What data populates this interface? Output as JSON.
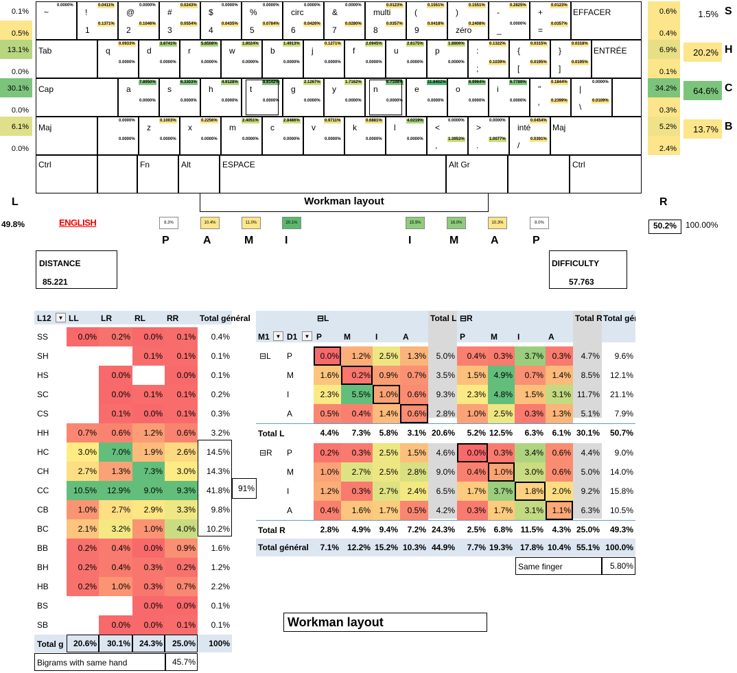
{
  "keyboard_title": "Workman layout",
  "language": "ENGLISH",
  "hands": {
    "left_label": "L",
    "left_value": "49.8%",
    "right_label": "R",
    "right_value": "50.2%",
    "total": "100.00%"
  },
  "left_side_pct": [
    "0.1%",
    "0.5%",
    "13.1%",
    "0.0%",
    "30.1%",
    "0.0%",
    "6.1%",
    "0.0%"
  ],
  "right_side_pct": [
    "0.6%",
    "0.4%",
    "6.9%",
    "0.1%",
    "34.2%",
    "0.3%",
    "5.2%",
    "2.4%"
  ],
  "row_totals": [
    {
      "value": "1.5%",
      "letter": "S"
    },
    {
      "value": "20.2%",
      "letter": "H"
    },
    {
      "value": "64.6%",
      "letter": "C"
    },
    {
      "value": "13.7%",
      "letter": "B"
    }
  ],
  "keys_row0": [
    {
      "top": "~",
      "bottom": "",
      "pt": "0.0000%",
      "pb": ""
    },
    {
      "top": "!",
      "bottom": "1",
      "pt": "0.0411%",
      "pb": "0.1371%"
    },
    {
      "top": "@",
      "bottom": "2",
      "pt": "0.0000%",
      "pb": "0.1046%"
    },
    {
      "top": "#",
      "bottom": "3",
      "pt": "0.0243%",
      "pb": "0.0554%"
    },
    {
      "top": "$",
      "bottom": "4",
      "pt": "0.0000%",
      "pb": "0.0435%"
    },
    {
      "top": "%",
      "bottom": "5",
      "pt": "0.0000%",
      "pb": "0.0784%"
    },
    {
      "top": "circ",
      "bottom": "6",
      "pt": "0.0000%",
      "pb": "0.0426%"
    },
    {
      "top": "&",
      "bottom": "7",
      "pt": "0.0000%",
      "pb": "0.0280%"
    },
    {
      "top": "multi",
      "bottom": "8",
      "pt": "0.0123%",
      "pb": "0.0357%"
    },
    {
      "top": "(",
      "bottom": "9",
      "pt": "0.1551%",
      "pb": "0.0418%"
    },
    {
      "top": ")",
      "bottom": "zéro",
      "pt": "0.1551%",
      "pb": "0.2408%"
    },
    {
      "top": "-",
      "bottom": "_",
      "pt": "0.2825%",
      "pb": "0.0000%"
    },
    {
      "top": "+",
      "bottom": "=",
      "pt": "0.0123%",
      "pb": "0.0357%"
    }
  ],
  "key_backspace": "EFFACER",
  "key_tab": "Tab",
  "keys_row1": [
    {
      "top": "q",
      "bottom": "",
      "pt": "0.0933%",
      "pb": "0.0000%"
    },
    {
      "top": "d",
      "bottom": "",
      "pt": "3.8741%",
      "pb": "0.0000%"
    },
    {
      "top": "r",
      "bottom": "",
      "pt": "5.8508%",
      "pb": "0.0000%"
    },
    {
      "top": "w",
      "bottom": "",
      "pt": "1.8024%",
      "pb": "0.0000%"
    },
    {
      "top": "b",
      "bottom": "",
      "pt": "1.4913%",
      "pb": "0.0000%"
    },
    {
      "top": "j",
      "bottom": "",
      "pt": "0.1271%",
      "pb": "0.0000%"
    },
    {
      "top": "f",
      "bottom": "",
      "pt": "2.0945%",
      "pb": "0.0000%"
    },
    {
      "top": "u",
      "bottom": "",
      "pt": "2.6175%",
      "pb": "0.0000%"
    },
    {
      "top": "p",
      "bottom": "",
      "pt": "1.8806%",
      "pb": "0.0000%"
    },
    {
      "top": ":",
      "bottom": ";",
      "pt": "0.1322%",
      "pb": "0.1039%"
    },
    {
      "top": "{",
      "bottom": "[",
      "pt": "0.0315%",
      "pb": "0.0195%"
    },
    {
      "top": "}",
      "bottom": "]",
      "pt": "0.0318%",
      "pb": "0.0195%"
    }
  ],
  "key_enter": "ENTRÉE",
  "key_caps": "Cap",
  "keys_row2": [
    {
      "top": "a",
      "bottom": "",
      "pt": "7.8950%",
      "pb": "0.0000%"
    },
    {
      "top": "s",
      "bottom": "",
      "pt": "6.3303%",
      "pb": "0.0000%"
    },
    {
      "top": "h",
      "bottom": "",
      "pt": "4.9128%",
      "pb": "0.0000%"
    },
    {
      "top": "t",
      "bottom": "",
      "pt": "8.8142%",
      "pb": "0.0000%"
    },
    {
      "top": "g",
      "bottom": "",
      "pt": "2.1267%",
      "pb": "0.0000%"
    },
    {
      "top": "y",
      "bottom": "",
      "pt": "1.7162%",
      "pb": "0.0000%"
    },
    {
      "top": "n",
      "bottom": "",
      "pt": "6.7108%",
      "pb": "0.0000%"
    },
    {
      "top": "e",
      "bottom": "",
      "pt": "11.8402%",
      "pb": "0.0000%"
    },
    {
      "top": "o",
      "bottom": "",
      "pt": "6.9964%",
      "pb": "0.0000%"
    },
    {
      "top": "i",
      "bottom": "",
      "pt": "6.7789%",
      "pb": "0.0000%"
    },
    {
      "top": "\"",
      "bottom": "'",
      "pt": "0.1844%",
      "pb": "0.2399%"
    },
    {
      "top": "|",
      "bottom": "\\",
      "pt": "0.0000%",
      "pb": "0.0109%"
    }
  ],
  "key_shift_l": "Maj",
  "keys_row3": [
    {
      "top": "",
      "bottom": "",
      "pt": "0.0000%",
      "pb": "0.0000%"
    },
    {
      "top": "z",
      "bottom": "",
      "pt": "0.1003%",
      "pb": "0.0000%"
    },
    {
      "top": "x",
      "bottom": "",
      "pt": "0.2256%",
      "pb": "0.0000%"
    },
    {
      "top": "m",
      "bottom": "",
      "pt": "2.4051%",
      "pb": "0.0000%"
    },
    {
      "top": "c",
      "bottom": "",
      "pt": "2.8486%",
      "pb": "0.0000%"
    },
    {
      "top": "v",
      "bottom": "",
      "pt": "0.9711%",
      "pb": "0.0000%"
    },
    {
      "top": "k",
      "bottom": "",
      "pt": "0.6881%",
      "pb": "0.0000%"
    },
    {
      "top": "l",
      "bottom": "",
      "pt": "4.0219%",
      "pb": "0.0000%"
    },
    {
      "top": "<",
      "bottom": ",",
      "pt": "0.0000%",
      "pb": "1.3953%"
    },
    {
      "top": ">",
      "bottom": ".",
      "pt": "0.0000%",
      "pb": "1.0077%"
    },
    {
      "top": "inté",
      "bottom": "/",
      "pt": "0.0454%",
      "pb": "0.0391%"
    }
  ],
  "key_shift_r": "Maj",
  "bottom_row": {
    "ctrl_l": "Ctrl",
    "fn": "Fn",
    "alt": "Alt",
    "space": "ESPACE",
    "altgr": "Alt Gr",
    "ctrl_r": "Ctrl"
  },
  "fingers": [
    {
      "pct": "8.3%",
      "letter": "P"
    },
    {
      "pct": "10.4%",
      "letter": "A"
    },
    {
      "pct": "11.0%",
      "letter": "M"
    },
    {
      "pct": "20.1%",
      "letter": "I"
    },
    {
      "pct": "15.9%",
      "letter": "I"
    },
    {
      "pct": "16.0%",
      "letter": "M"
    },
    {
      "pct": "10.3%",
      "letter": "A"
    },
    {
      "pct": "8.0%",
      "letter": "P"
    }
  ],
  "distance": {
    "label": "DISTANCE",
    "value": "85.221"
  },
  "difficulty": {
    "label": "DIFFICULTY",
    "value": "57.763"
  },
  "pivot1": {
    "filter_label": "L12",
    "columns": [
      "LL",
      "LR",
      "RL",
      "RR",
      "Total général"
    ],
    "rows": [
      {
        "label": "SS",
        "cells": [
          "0.0%",
          "0.2%",
          "0.0%",
          "0.1%"
        ],
        "total": "0.4%"
      },
      {
        "label": "SH",
        "cells": [
          "",
          "",
          "0.1%",
          "0.1%"
        ],
        "total": "0.1%"
      },
      {
        "label": "HS",
        "cells": [
          "",
          "0.0%",
          "",
          "0.0%"
        ],
        "total": "0.1%"
      },
      {
        "label": "SC",
        "cells": [
          "",
          "0.0%",
          "0.1%",
          "0.1%"
        ],
        "total": "0.2%"
      },
      {
        "label": "CS",
        "cells": [
          "",
          "0.1%",
          "0.0%",
          "0.1%"
        ],
        "total": "0.3%"
      },
      {
        "label": "HH",
        "cells": [
          "0.7%",
          "0.6%",
          "1.2%",
          "0.6%"
        ],
        "total": "3.2%"
      },
      {
        "label": "HC",
        "cells": [
          "3.0%",
          "7.0%",
          "1.9%",
          "2.6%"
        ],
        "total": "14.5%"
      },
      {
        "label": "CH",
        "cells": [
          "2.7%",
          "1.3%",
          "7.3%",
          "3.0%"
        ],
        "total": "14.3%"
      },
      {
        "label": "CC",
        "cells": [
          "10.5%",
          "12.9%",
          "9.0%",
          "9.3%"
        ],
        "total": "41.8%"
      },
      {
        "label": "CB",
        "cells": [
          "1.0%",
          "2.7%",
          "2.9%",
          "3.3%"
        ],
        "total": "9.8%"
      },
      {
        "label": "BC",
        "cells": [
          "2.1%",
          "3.2%",
          "1.0%",
          "4.0%"
        ],
        "total": "10.2%"
      },
      {
        "label": "BB",
        "cells": [
          "0.2%",
          "0.4%",
          "0.0%",
          "0.9%"
        ],
        "total": "1.6%"
      },
      {
        "label": "BH",
        "cells": [
          "0.2%",
          "0.4%",
          "0.3%",
          "0.2%"
        ],
        "total": "1.2%"
      },
      {
        "label": "HB",
        "cells": [
          "0.2%",
          "1.0%",
          "0.3%",
          "0.7%"
        ],
        "total": "2.2%"
      },
      {
        "label": "BS",
        "cells": [
          "",
          "",
          "0.0%",
          "0.0%"
        ],
        "total": "0.1%"
      },
      {
        "label": "SB",
        "cells": [
          "",
          "0.0%",
          "0.0%",
          "0.1%"
        ],
        "total": "0.1%"
      }
    ],
    "cc_group_total": "91%",
    "total_row": {
      "label": "Total g",
      "cells": [
        "20.6%",
        "30.1%",
        "24.3%",
        "25.0%"
      ],
      "total": "100%"
    },
    "same_hand": {
      "label": "Bigrams with same hand",
      "value": "45.7%"
    }
  },
  "pivot2": {
    "col_group_l": "L",
    "col_group_r": "R",
    "header_total_l": "Total L",
    "header_total_r": "Total R",
    "header_total_g": "Total général",
    "row_field_1": "M1",
    "row_field_2": "D1",
    "sub_cols": [
      "P",
      "M",
      "I",
      "A"
    ],
    "groups": [
      {
        "hand": "L",
        "rows": [
          {
            "finger": "P",
            "l": [
              "0.0%",
              "1.2%",
              "2.5%",
              "1.3%"
            ],
            "tl": "5.0%",
            "r": [
              "0.4%",
              "0.3%",
              "3.7%",
              "0.3%"
            ],
            "tr": "4.7%",
            "tg": "9.6%"
          },
          {
            "finger": "M",
            "l": [
              "1.6%",
              "0.2%",
              "0.9%",
              "0.7%"
            ],
            "tl": "3.5%",
            "r": [
              "1.5%",
              "4.9%",
              "0.7%",
              "1.4%"
            ],
            "tr": "8.5%",
            "tg": "12.1%"
          },
          {
            "finger": "I",
            "l": [
              "2.3%",
              "5.5%",
              "1.0%",
              "0.6%"
            ],
            "tl": "9.3%",
            "r": [
              "2.3%",
              "4.8%",
              "1.5%",
              "3.1%"
            ],
            "tr": "11.7%",
            "tg": "21.1%"
          },
          {
            "finger": "A",
            "l": [
              "0.5%",
              "0.4%",
              "1.4%",
              "0.6%"
            ],
            "tl": "2.8%",
            "r": [
              "1.0%",
              "2.5%",
              "0.3%",
              "1.3%"
            ],
            "tr": "5.1%",
            "tg": "7.9%"
          }
        ],
        "total": {
          "label": "Total L",
          "l": [
            "4.4%",
            "7.3%",
            "5.8%",
            "3.1%"
          ],
          "tl": "20.6%",
          "r": [
            "5.2%",
            "12.5%",
            "6.3%",
            "6.1%"
          ],
          "tr": "30.1%",
          "tg": "50.7%"
        }
      },
      {
        "hand": "R",
        "rows": [
          {
            "finger": "P",
            "l": [
              "0.2%",
              "0.3%",
              "2.5%",
              "1.5%"
            ],
            "tl": "4.6%",
            "r": [
              "0.0%",
              "0.3%",
              "3.4%",
              "0.6%"
            ],
            "tr": "4.4%",
            "tg": "9.0%"
          },
          {
            "finger": "M",
            "l": [
              "1.0%",
              "2.7%",
              "2.5%",
              "2.8%"
            ],
            "tl": "9.0%",
            "r": [
              "0.4%",
              "1.0%",
              "3.0%",
              "0.6%"
            ],
            "tr": "5.0%",
            "tg": "14.0%"
          },
          {
            "finger": "I",
            "l": [
              "1.2%",
              "0.3%",
              "2.7%",
              "2.4%"
            ],
            "tl": "6.5%",
            "r": [
              "1.7%",
              "3.7%",
              "1.8%",
              "2.0%"
            ],
            "tr": "9.2%",
            "tg": "15.8%"
          },
          {
            "finger": "A",
            "l": [
              "0.4%",
              "1.6%",
              "1.7%",
              "0.5%"
            ],
            "tl": "4.2%",
            "r": [
              "0.3%",
              "1.7%",
              "3.1%",
              "1.1%"
            ],
            "tr": "6.3%",
            "tg": "10.5%"
          }
        ],
        "total": {
          "label": "Total R",
          "l": [
            "2.8%",
            "4.9%",
            "9.4%",
            "7.2%"
          ],
          "tl": "24.3%",
          "r": [
            "2.5%",
            "6.8%",
            "11.5%",
            "4.3%"
          ],
          "tr": "25.0%",
          "tg": "49.3%"
        }
      }
    ],
    "grand_total": {
      "label": "Total général",
      "l": [
        "7.1%",
        "12.2%",
        "15.2%",
        "10.3%"
      ],
      "tl": "44.9%",
      "r": [
        "7.7%",
        "19.3%",
        "17.8%",
        "10.4%"
      ],
      "tr": "55.1%",
      "tg": "100.0%"
    },
    "same_finger": {
      "label": "Same finger",
      "value": "5.80%"
    }
  },
  "bottom_title": "Workman layout"
}
